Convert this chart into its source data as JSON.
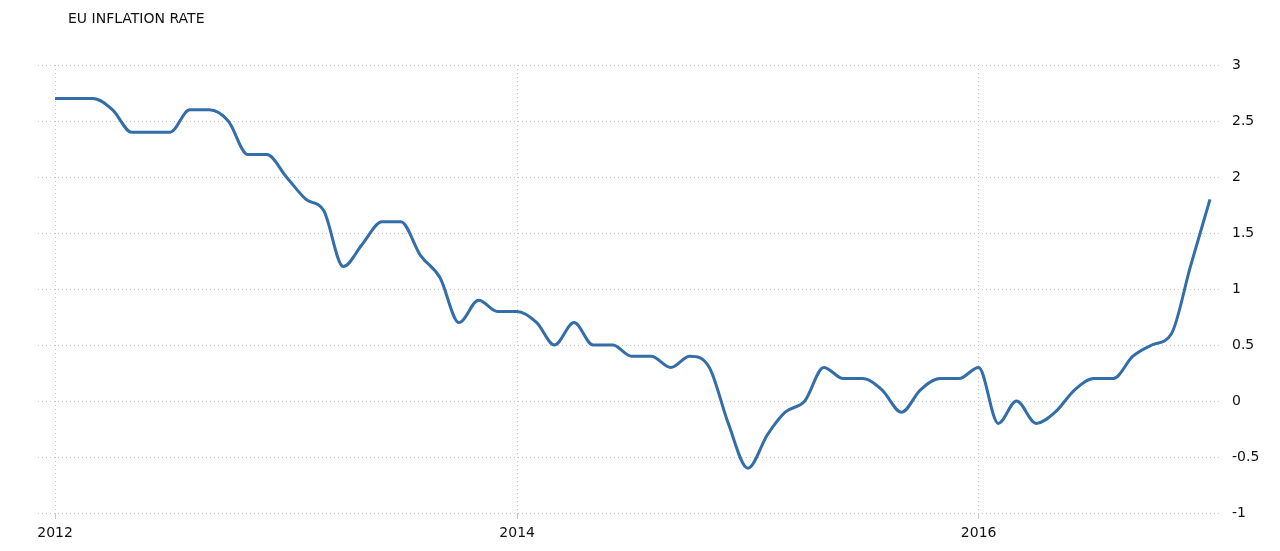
{
  "chart_data": {
    "type": "line",
    "title": "EU INFLATION RATE",
    "x": [
      "2012-01",
      "2012-02",
      "2012-03",
      "2012-04",
      "2012-05",
      "2012-06",
      "2012-07",
      "2012-08",
      "2012-09",
      "2012-10",
      "2012-11",
      "2012-12",
      "2013-01",
      "2013-02",
      "2013-03",
      "2013-04",
      "2013-05",
      "2013-06",
      "2013-07",
      "2013-08",
      "2013-09",
      "2013-10",
      "2013-11",
      "2013-12",
      "2014-01",
      "2014-02",
      "2014-03",
      "2014-04",
      "2014-05",
      "2014-06",
      "2014-07",
      "2014-08",
      "2014-09",
      "2014-10",
      "2014-11",
      "2014-12",
      "2015-01",
      "2015-02",
      "2015-03",
      "2015-04",
      "2015-05",
      "2015-06",
      "2015-07",
      "2015-08",
      "2015-09",
      "2015-10",
      "2015-11",
      "2015-12",
      "2016-01",
      "2016-02",
      "2016-03",
      "2016-04",
      "2016-05",
      "2016-06",
      "2016-07",
      "2016-08",
      "2016-09",
      "2016-10",
      "2016-11",
      "2016-12",
      "2017-01"
    ],
    "series": [
      {
        "color": "#336ea8",
        "values": [
          2.7,
          2.7,
          2.7,
          2.6,
          2.4,
          2.4,
          2.4,
          2.6,
          2.6,
          2.5,
          2.2,
          2.2,
          2.0,
          1.8,
          1.7,
          1.2,
          1.4,
          1.6,
          1.6,
          1.3,
          1.1,
          0.7,
          0.9,
          0.8,
          0.8,
          0.7,
          0.5,
          0.7,
          0.5,
          0.5,
          0.4,
          0.4,
          0.3,
          0.4,
          0.3,
          -0.2,
          -0.6,
          -0.3,
          -0.1,
          0.0,
          0.3,
          0.2,
          0.2,
          0.1,
          -0.1,
          0.1,
          0.2,
          0.2,
          0.3,
          -0.2,
          0.0,
          -0.2,
          -0.1,
          0.1,
          0.2,
          0.2,
          0.4,
          0.5,
          0.6,
          1.2,
          1.8
        ]
      }
    ],
    "xlim": [
      "2011-12-05",
      "2017-01-20"
    ],
    "xticks": [
      "2012",
      "2014",
      "2016"
    ],
    "ylim": [
      -1,
      3
    ],
    "yticks": [
      -1,
      -0.5,
      0,
      0.5,
      1,
      1.5,
      2,
      2.5,
      3
    ],
    "grid": true,
    "legend": false,
    "marker": "none",
    "line_style": "solid"
  }
}
